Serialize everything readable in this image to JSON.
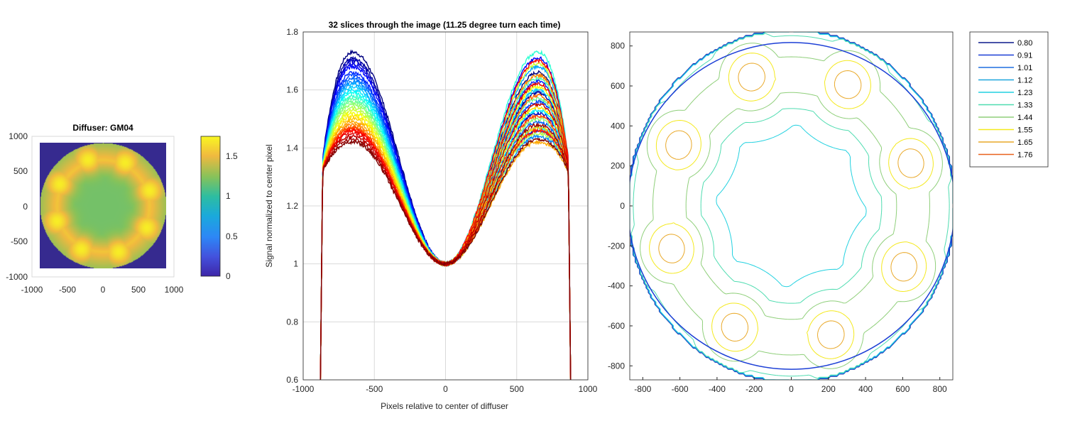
{
  "chart_data": [
    {
      "type": "heatmap",
      "title": "Diffuser: GM04",
      "xlim": [
        -1000,
        1000
      ],
      "ylim": [
        -1000,
        1000
      ],
      "xticks": [
        "-1000",
        "-500",
        "0",
        "500",
        "1000"
      ],
      "yticks": [
        "1000",
        "500",
        "0",
        "-500",
        "-1000"
      ],
      "diffuser_radius": 880,
      "center_value": 1.0,
      "hotspot_value": 1.75,
      "hotspot_count": 8,
      "hotspot_radius": 650,
      "colorbar": {
        "ticks": [
          "1.5",
          "1",
          "0.5",
          "0"
        ],
        "tick_values": [
          1.5,
          1,
          0.5,
          0
        ],
        "range": [
          0,
          1.75
        ]
      }
    },
    {
      "type": "line",
      "title": "32 slices through the image (11.25 degree turn each time)",
      "xlabel": "Pixels relative to center of diffuser",
      "ylabel": "Signal normalized to center pixel",
      "xlim": [
        -1000,
        1000
      ],
      "ylim": [
        0.6,
        1.8
      ],
      "xticks": [
        "-1000",
        "-500",
        "0",
        "500",
        "1000"
      ],
      "yticks": [
        "1.8",
        "1.6",
        "1.4",
        "1.2",
        "1",
        "0.8",
        "0.6"
      ],
      "grid": true,
      "slice_count": 32,
      "edge": 880,
      "peak_x_approx": 650,
      "series_peaks": [
        1.73,
        1.71,
        1.7,
        1.69,
        1.68,
        1.66,
        1.65,
        1.64,
        1.63,
        1.62,
        1.61,
        1.6,
        1.59,
        1.58,
        1.57,
        1.56,
        1.55,
        1.54,
        1.53,
        1.52,
        1.51,
        1.5,
        1.49,
        1.48,
        1.47,
        1.47,
        1.46,
        1.46,
        1.45,
        1.44,
        1.43,
        1.42
      ]
    },
    {
      "type": "contour",
      "xlim": [
        -870,
        870
      ],
      "ylim": [
        -870,
        870
      ],
      "xticks": [
        "-800",
        "-600",
        "-400",
        "-200",
        "0",
        "200",
        "400",
        "600",
        "800"
      ],
      "yticks": [
        "800",
        "600",
        "400",
        "200",
        "0",
        "-200",
        "-400",
        "-600",
        "-800"
      ],
      "levels": [
        "0.80",
        "0.91",
        "1.01",
        "1.12",
        "1.23",
        "1.33",
        "1.44",
        "1.55",
        "1.65",
        "1.76"
      ],
      "level_values": [
        0.8,
        0.91,
        1.01,
        1.12,
        1.23,
        1.33,
        1.44,
        1.55,
        1.65,
        1.76
      ],
      "legend_location": "top-right outside"
    }
  ]
}
